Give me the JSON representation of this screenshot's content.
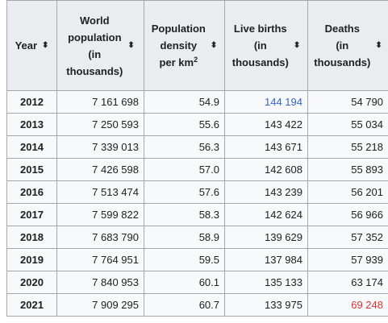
{
  "headers": [
    {
      "lines": [
        "Year"
      ],
      "sort_icon": "sort-updown-icon"
    },
    {
      "lines": [
        "World",
        "population",
        "(in",
        "thousands)"
      ],
      "sort_icon": "sort-updown-icon"
    },
    {
      "lines": [
        "Population",
        "density",
        "per km",
        "2"
      ],
      "sort_icon": "sort-updown-icon"
    },
    {
      "lines": [
        "Live births",
        "(in",
        "thousands)"
      ],
      "sort_icon": "sort-updown-icon"
    },
    {
      "lines": [
        "Deaths",
        "(in",
        "thousands)"
      ],
      "sort_icon": "sort-updown-icon"
    }
  ],
  "sort_glyph": "⬍",
  "rows": [
    {
      "year": "2012",
      "population": "7 161 698",
      "density": "54.9",
      "births": "144 194",
      "deaths": "54 790"
    },
    {
      "year": "2013",
      "population": "7 250 593",
      "density": "55.6",
      "births": "143 422",
      "deaths": "55 034"
    },
    {
      "year": "2014",
      "population": "7 339 013",
      "density": "56.3",
      "births": "143 671",
      "deaths": "55 218"
    },
    {
      "year": "2015",
      "population": "7 426 598",
      "density": "57.0",
      "births": "142 608",
      "deaths": "55 893"
    },
    {
      "year": "2016",
      "population": "7 513 474",
      "density": "57.6",
      "births": "143 239",
      "deaths": "56 201"
    },
    {
      "year": "2017",
      "population": "7 599 822",
      "density": "58.3",
      "births": "142 624",
      "deaths": "56 966"
    },
    {
      "year": "2018",
      "population": "7 683 790",
      "density": "58.9",
      "births": "139 629",
      "deaths": "57 352"
    },
    {
      "year": "2019",
      "population": "7 764 951",
      "density": "59.5",
      "births": "137 984",
      "deaths": "57 939"
    },
    {
      "year": "2020",
      "population": "7 840 953",
      "density": "60.1",
      "births": "135 133",
      "deaths": "63 174"
    },
    {
      "year": "2021",
      "population": "7 909 295",
      "density": "60.7",
      "births": "133 975",
      "deaths": "69 248"
    }
  ],
  "colors": {
    "header_bg": "#eaecf0",
    "cell_bg": "#f8f9fa",
    "border": "#a2a9b1",
    "text": "#202122",
    "link": "#3366cc",
    "highlight_red": "#d33"
  }
}
